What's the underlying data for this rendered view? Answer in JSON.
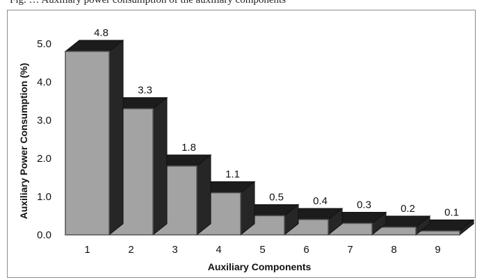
{
  "caption": {
    "text": "Fig. … Auxiliary power consumption of the auxiliary components"
  },
  "chart_data": {
    "type": "bar",
    "title": "",
    "xlabel": "Auxiliary Components",
    "ylabel": "Auxiliary Power Consumption (%)",
    "categories": [
      "1",
      "2",
      "3",
      "4",
      "5",
      "6",
      "7",
      "8",
      "9"
    ],
    "values": [
      4.8,
      3.3,
      1.8,
      1.1,
      0.5,
      0.4,
      0.3,
      0.2,
      0.1
    ],
    "data_labels": [
      "4.8",
      "3.3",
      "1.8",
      "1.1",
      "0.5",
      "0.4",
      "0.3",
      "0.2",
      "0.1"
    ],
    "ylim": [
      0,
      5
    ],
    "yticks": [
      "0.0",
      "1.0",
      "2.0",
      "3.0",
      "4.0",
      "5.0"
    ],
    "style": "3d-column",
    "colors": {
      "bar_front": "#a3a3a3",
      "bar_side": "#262626",
      "bar_top": "#1c1c1c",
      "edge": "#555555"
    },
    "grid": false,
    "legend": "none"
  }
}
